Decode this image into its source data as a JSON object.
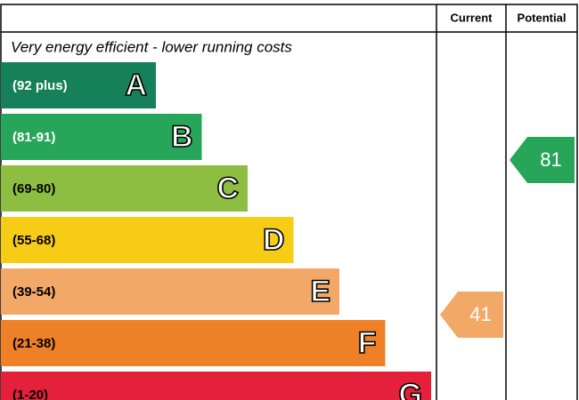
{
  "header": {
    "current": "Current",
    "potential": "Potential"
  },
  "subtitle": "Very energy efficient - lower running costs",
  "bands": [
    {
      "range": "(92 plus)",
      "letter": "A",
      "color": "#16805a",
      "text_color": "#ffffff"
    },
    {
      "range": "(81-91)",
      "letter": "B",
      "color": "#27a659",
      "text_color": "#ffffff"
    },
    {
      "range": "(69-80)",
      "letter": "C",
      "color": "#8dbe42",
      "text_color": "#000000"
    },
    {
      "range": "(55-68)",
      "letter": "D",
      "color": "#f7cc17",
      "text_color": "#000000"
    },
    {
      "range": "(39-54)",
      "letter": "E",
      "color": "#f2a968",
      "text_color": "#000000"
    },
    {
      "range": "(21-38)",
      "letter": "F",
      "color": "#ee8128",
      "text_color": "#000000"
    },
    {
      "range": "(1-20)",
      "letter": "G",
      "color": "#e4203b",
      "text_color": "#000000"
    }
  ],
  "current": {
    "value": 41,
    "band": 4
  },
  "potential": {
    "value": 81,
    "band": 1
  }
}
